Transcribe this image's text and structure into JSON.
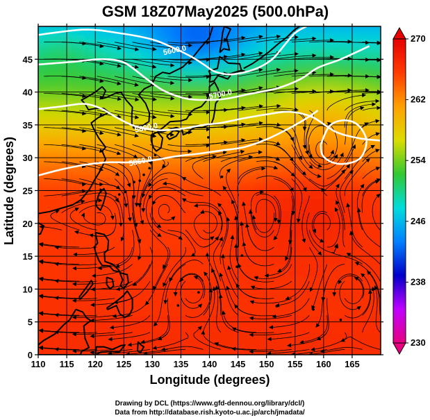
{
  "title": "GSM 18Z07May2025 (500.0hPa)",
  "xlabel": "Longitude (degrees)",
  "ylabel": "Latitude  (degrees)",
  "credits": [
    "Drawing by DCL (https://www.gfd-dennou.org/library/dcl/)",
    "Data from http://database.rish.kyoto-u.ac.jp/arch/jmadata/"
  ],
  "colors": {
    "frame": "#000000",
    "coast": "#000000",
    "contour": "#ffffff",
    "streamline": "#000000"
  },
  "chart_data": {
    "type": "heatmap",
    "xlim": [
      110,
      170
    ],
    "ylim": [
      0,
      50
    ],
    "x_ticks": [
      "110",
      "115",
      "120",
      "125",
      "130",
      "135",
      "140",
      "145",
      "150",
      "155",
      "160",
      "165"
    ],
    "y_ticks": [
      "0",
      "5",
      "10",
      "15",
      "20",
      "25",
      "30",
      "35",
      "40",
      "45"
    ],
    "grid": true,
    "colorbar": {
      "min": 230,
      "max": 270,
      "ticks": [
        "230",
        "238",
        "246",
        "254",
        "262",
        "270"
      ],
      "placement": "right",
      "stops": [
        "#e6007e",
        "#c000ff",
        "#0000c8",
        "#0080ff",
        "#00dcdc",
        "#32c832",
        "#dcdc00",
        "#ffa000",
        "#ff3c00",
        "#e60000"
      ]
    },
    "contours": [
      {
        "label": "5600.0",
        "points": [
          [
            110,
            48.7
          ],
          [
            118,
            49.5
          ],
          [
            124,
            49
          ],
          [
            130,
            48
          ],
          [
            134,
            46.6
          ],
          [
            137,
            45.3
          ],
          [
            139,
            44.2
          ],
          [
            141,
            43.1
          ],
          [
            144,
            42.7
          ],
          [
            148,
            43.5
          ],
          [
            151,
            45
          ],
          [
            153,
            47
          ],
          [
            155,
            49
          ],
          [
            157,
            50
          ]
        ],
        "label_at": [
          134,
          46.0
        ]
      },
      {
        "label": "5700.0",
        "points": [
          [
            110,
            44.2
          ],
          [
            116,
            44.6
          ],
          [
            121,
            45
          ],
          [
            125,
            44.5
          ],
          [
            129,
            42
          ],
          [
            132,
            40.2
          ],
          [
            136,
            39
          ],
          [
            140,
            38.8
          ],
          [
            143,
            39
          ],
          [
            147,
            39.7
          ],
          [
            152,
            40.6
          ],
          [
            156,
            42
          ],
          [
            159,
            43.7
          ],
          [
            163,
            45
          ],
          [
            168,
            47
          ]
        ],
        "label_at": [
          142,
          39.3
        ]
      },
      {
        "label": "5800.0",
        "points": [
          [
            110,
            37.4
          ],
          [
            114,
            37.8
          ],
          [
            118,
            38.2
          ],
          [
            121,
            37.5
          ],
          [
            124,
            36
          ],
          [
            127,
            34.8
          ],
          [
            131,
            34.2
          ],
          [
            135,
            34.4
          ],
          [
            139,
            35
          ],
          [
            142,
            35.3
          ],
          [
            146,
            36
          ],
          [
            150,
            36.6
          ],
          [
            154,
            37
          ],
          [
            158,
            36.2
          ],
          [
            162,
            34
          ],
          [
            166,
            33
          ],
          [
            170,
            32.6
          ]
        ],
        "label_at": [
          129,
          34.2
        ]
      },
      {
        "label": "5860.0",
        "points": [
          [
            110,
            27.3
          ],
          [
            114,
            28.2
          ],
          [
            118,
            28.9
          ],
          [
            122,
            29.3
          ],
          [
            126,
            29.3
          ],
          [
            130,
            29.6
          ],
          [
            134,
            30.2
          ],
          [
            138,
            30.6
          ],
          [
            142,
            31.1
          ],
          [
            146,
            31.6
          ],
          [
            150,
            32.8
          ],
          [
            154,
            34.5
          ],
          [
            157,
            36
          ],
          [
            159,
            37.2
          ]
        ],
        "label_at": [
          128,
          29.1
        ]
      },
      {
        "label": "",
        "points": [
          [
            159.5,
            32.0
          ],
          [
            161,
            34.8
          ],
          [
            163.5,
            35.7
          ],
          [
            166,
            35.0
          ],
          [
            167.5,
            32.6
          ],
          [
            166.5,
            30.0
          ],
          [
            164,
            29.1
          ],
          [
            161.5,
            29.3
          ],
          [
            159.8,
            30.4
          ],
          [
            159.5,
            32.0
          ]
        ],
        "label_at": null
      }
    ],
    "vortex_centers": [
      [
        140,
        20
      ],
      [
        160,
        20
      ],
      [
        165,
        10
      ],
      [
        137,
        10
      ],
      [
        160,
        31
      ],
      [
        132,
        22
      ]
    ]
  }
}
